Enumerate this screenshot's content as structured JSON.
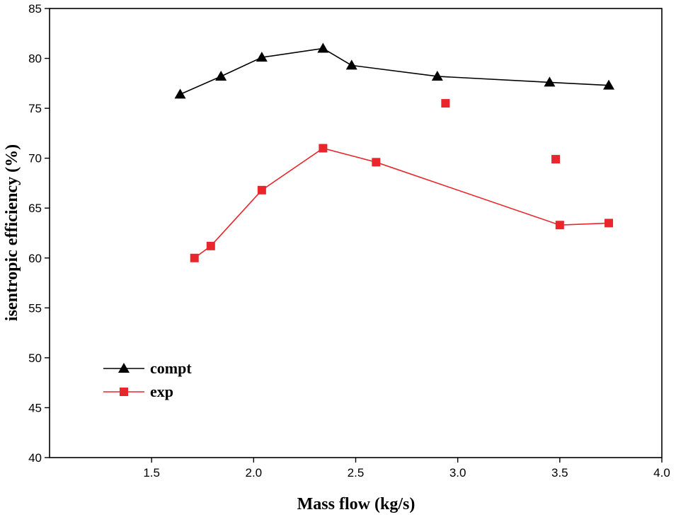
{
  "chart_data": {
    "type": "line",
    "title": "",
    "xlabel": "Mass flow (kg/s)",
    "ylabel": "isentropic efficiency (%)",
    "xlim": [
      1.0,
      4.0
    ],
    "ylim": [
      40,
      85
    ],
    "xticks": [
      1.5,
      2.0,
      2.5,
      3.0,
      3.5,
      4.0
    ],
    "xtick_labels": [
      "1.5",
      "2.0",
      "2.5",
      "3.0",
      "3.5",
      "4.0"
    ],
    "yticks": [
      40,
      45,
      50,
      55,
      60,
      65,
      70,
      75,
      80,
      85
    ],
    "ytick_labels": [
      "40",
      "45",
      "50",
      "55",
      "60",
      "65",
      "70",
      "75",
      "80",
      "85"
    ],
    "grid": false,
    "legend_position": "bottom-left",
    "series": [
      {
        "name": "compt",
        "color": "#000000",
        "marker": "triangle",
        "connected": true,
        "x": [
          1.64,
          1.84,
          2.04,
          2.34,
          2.48,
          2.9,
          3.45,
          3.74
        ],
        "y": [
          76.4,
          78.2,
          80.1,
          81.0,
          79.3,
          78.2,
          77.6,
          77.3
        ]
      },
      {
        "name": "exp",
        "color": "#e8262b",
        "marker": "square",
        "connected": true,
        "x": [
          1.71,
          1.79,
          2.04,
          2.34,
          2.6,
          3.5,
          3.74
        ],
        "y": [
          60.0,
          61.2,
          66.8,
          71.0,
          69.6,
          63.3,
          63.5
        ]
      },
      {
        "name": "",
        "color": "#e8262b",
        "marker": "square",
        "connected": false,
        "x": [
          2.94,
          3.48
        ],
        "y": [
          75.5,
          69.9
        ]
      }
    ]
  }
}
